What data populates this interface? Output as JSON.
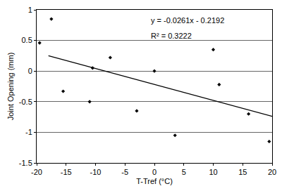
{
  "chart_data": {
    "type": "scatter",
    "x_label": "T-Tref (°C)",
    "y_label": "Joint Opening (mm)",
    "annotations": [
      "y = -0.0261x - 0.2192",
      "R² = 0.3222"
    ],
    "series": [
      {
        "type": "scatter",
        "color": "#000000",
        "marker": "diamond",
        "x": [
          -19.5,
          -17.5,
          -15.5,
          -11,
          -10.5,
          -7.5,
          -3,
          0,
          3.5,
          10,
          11,
          16,
          19.5
        ],
        "values": [
          0.46,
          0.85,
          -0.33,
          -0.5,
          0.05,
          0.22,
          -0.65,
          0,
          -1.05,
          0.35,
          -0.22,
          -0.7,
          -1.15
        ]
      },
      {
        "type": "line",
        "color": "#000000",
        "line_style": "solid",
        "x": [
          -18,
          20
        ],
        "values": [
          0.25,
          -0.74
        ]
      }
    ],
    "xlim": [
      -20,
      20
    ],
    "xticks": [
      -20,
      -15,
      -10,
      -5,
      0,
      5,
      10,
      15,
      20
    ],
    "ylim": [
      -1.5,
      1
    ],
    "yticks": [
      -1.5,
      -1,
      -0.5,
      0,
      0.5,
      1
    ],
    "grid": true
  }
}
